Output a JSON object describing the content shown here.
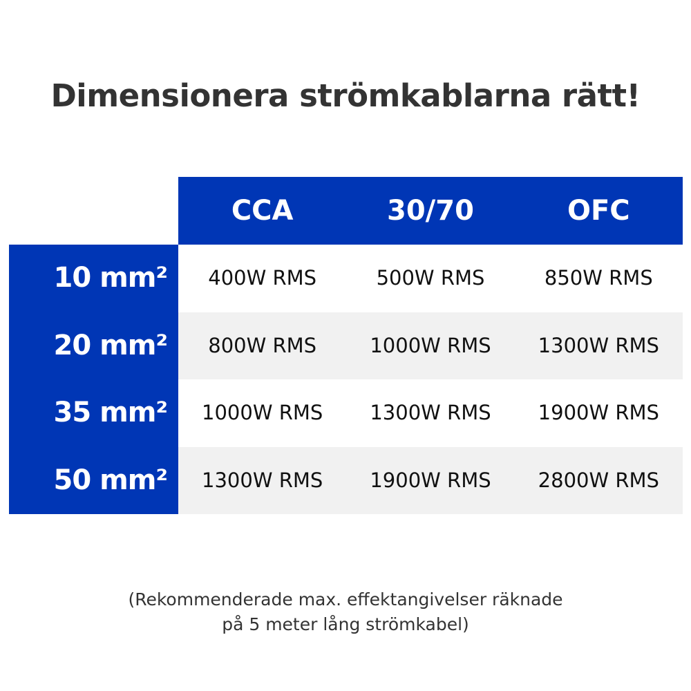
{
  "title": "Dimensionera strömkablarna rätt!",
  "table": {
    "columns": [
      "CCA",
      "30/70",
      "OFC"
    ],
    "rows": [
      {
        "label": "10 mm²",
        "cells": [
          "400W RMS",
          "500W RMS",
          "850W RMS"
        ]
      },
      {
        "label": "20 mm²",
        "cells": [
          "800W RMS",
          "1000W RMS",
          "1300W RMS"
        ]
      },
      {
        "label": "35 mm²",
        "cells": [
          "1000W RMS",
          "1300W RMS",
          "1900W RMS"
        ]
      },
      {
        "label": "50 mm²",
        "cells": [
          "1300W RMS",
          "1900W RMS",
          "2800W RMS"
        ]
      }
    ]
  },
  "note": {
    "line1": "(Rekommenderade max. effektangivelser räknade",
    "line2": "på 5 meter lång strömkabel)"
  },
  "colors": {
    "accent": "#0036b5",
    "stripe": "#f1f1f1"
  }
}
